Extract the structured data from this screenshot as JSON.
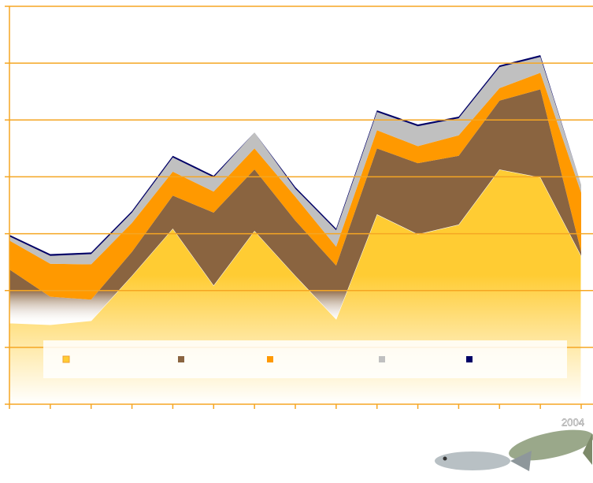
{
  "chart_data": {
    "type": "area",
    "stacked": true,
    "categories": [
      null,
      null,
      null,
      null,
      null,
      null,
      null,
      null,
      null,
      null,
      null,
      null,
      null,
      null,
      null
    ],
    "series": [
      {
        "color": "#ffcc33",
        "values": [
          1.43,
          1.4,
          1.47,
          2.26,
          3.09,
          2.09,
          3.05,
          2.26,
          1.5,
          3.34,
          2.99,
          3.16,
          4.13,
          3.99,
          2.61
        ]
      },
      {
        "color": "#8a6440",
        "values": [
          0.94,
          0.49,
          0.37,
          0.42,
          0.58,
          1.28,
          1.08,
          0.97,
          0.94,
          1.16,
          1.25,
          1.21,
          1.21,
          1.55,
          0.07
        ]
      },
      {
        "color": "#ff9900",
        "values": [
          0.51,
          0.58,
          0.62,
          0.51,
          0.42,
          0.37,
          0.37,
          0.42,
          0.33,
          0.32,
          0.3,
          0.36,
          0.22,
          0.29,
          1.04
        ]
      },
      {
        "color": "#c0c0c0",
        "values": [
          0.07,
          0.14,
          0.18,
          0.18,
          0.25,
          0.25,
          0.28,
          0.14,
          0.29,
          0.32,
          0.35,
          0.3,
          0.37,
          0.28,
          0.14
        ]
      },
      {
        "color": "#000066",
        "values": [
          0.03,
          0.03,
          0.03,
          0.03,
          0.03,
          0.03,
          0,
          0.03,
          0.03,
          0.03,
          0.03,
          0.03,
          0.03,
          0.03,
          0
        ]
      }
    ],
    "ylim": [
      0,
      7
    ],
    "yticks": [
      0,
      1,
      2,
      3,
      4,
      5,
      6,
      7
    ],
    "grid": true,
    "grid_color": "#f5a623",
    "legend": "bottom",
    "caption": "2004"
  }
}
